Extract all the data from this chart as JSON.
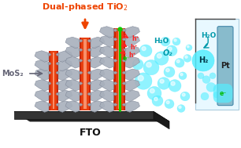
{
  "bg_color": "#ffffff",
  "fto_label": "FTO",
  "mos2_label": "MoS₂",
  "title_line1": "Dual-phased TiO₂",
  "o2_label": "O₂",
  "h2o_label": "H₂O",
  "h2_label": "H₂",
  "pt_label": "Pt",
  "e_label": "e⁻",
  "h_label": "h⁺",
  "orange_dark": "#CC2200",
  "orange_mid": "#E84010",
  "orange_light": "#FF8860",
  "salmon": "#FFAA88",
  "gray_dark": "#808898",
  "gray_mid": "#A8B0BC",
  "gray_light": "#C8D0DC",
  "green_color": "#11CC00",
  "cyan_color": "#00CCDD",
  "cyan_dark": "#0099AA",
  "bubble_color": "#55EEFF",
  "bubble_alpha": 0.65,
  "fto_dark": "#111111",
  "fto_gray": "#333333",
  "title_color": "#EE4400",
  "h_color": "#FF2222",
  "e_color": "#00BB00",
  "pt_fill": "#88BBCC",
  "pt_edge": "#4488AA",
  "wire_color": "#444444",
  "mos2_arrow_color": "#666677"
}
